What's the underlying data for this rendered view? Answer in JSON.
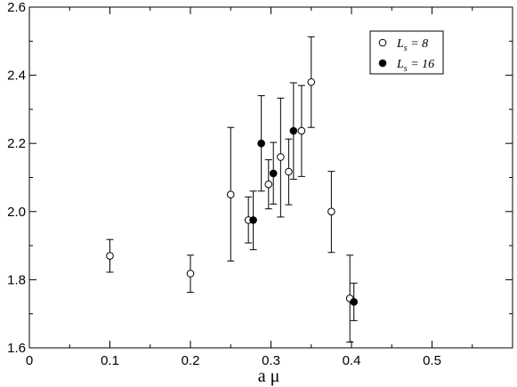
{
  "chart_data": {
    "type": "scatter",
    "title": "",
    "xlabel": "a μ",
    "ylabel": "",
    "xlim": [
      0,
      0.6
    ],
    "ylim": [
      1.6,
      2.6
    ],
    "x_ticks": [
      0,
      0.1,
      0.2,
      0.3,
      0.4,
      0.5
    ],
    "x_tick_labels": [
      "0",
      "0.1",
      "0.2",
      "0.3",
      "0.4",
      "0.5"
    ],
    "y_ticks": [
      1.6,
      1.8,
      2.0,
      2.2,
      2.4,
      2.6
    ],
    "y_tick_labels": [
      "1.6",
      "1.8",
      "2.0",
      "2.2",
      "2.4",
      "2.6"
    ],
    "grid": false,
    "legend_position": "top-right",
    "series": [
      {
        "name": "L_s = 8",
        "legend_main": "L",
        "legend_sub": "s",
        "legend_rest": " = 8",
        "marker": "open-circle",
        "color": "#000000",
        "points": [
          {
            "x": 0.1,
            "y": 1.87,
            "err_low": 1.822,
            "err_high": 1.918
          },
          {
            "x": 0.2,
            "y": 1.818,
            "err_low": 1.763,
            "err_high": 1.872
          },
          {
            "x": 0.25,
            "y": 2.05,
            "err_low": 1.855,
            "err_high": 2.247
          },
          {
            "x": 0.272,
            "y": 1.975,
            "err_low": 1.908,
            "err_high": 2.043
          },
          {
            "x": 0.297,
            "y": 2.08,
            "err_low": 2.008,
            "err_high": 2.152
          },
          {
            "x": 0.312,
            "y": 2.16,
            "err_low": 1.984,
            "err_high": 2.333
          },
          {
            "x": 0.322,
            "y": 2.117,
            "err_low": 2.02,
            "err_high": 2.213
          },
          {
            "x": 0.338,
            "y": 2.237,
            "err_low": 2.103,
            "err_high": 2.37
          },
          {
            "x": 0.35,
            "y": 2.38,
            "err_low": 2.247,
            "err_high": 2.513
          },
          {
            "x": 0.375,
            "y": 2.0,
            "err_low": 1.88,
            "err_high": 2.118
          },
          {
            "x": 0.398,
            "y": 1.745,
            "err_low": 1.617,
            "err_high": 1.872
          }
        ]
      },
      {
        "name": "L_s = 16",
        "legend_main": "L",
        "legend_sub": "s",
        "legend_rest": " = 16",
        "marker": "filled-circle",
        "color": "#000000",
        "points": [
          {
            "x": 0.278,
            "y": 1.975,
            "err_low": 1.888,
            "err_high": 2.06
          },
          {
            "x": 0.288,
            "y": 2.2,
            "err_low": 2.06,
            "err_high": 2.34
          },
          {
            "x": 0.303,
            "y": 2.112,
            "err_low": 2.022,
            "err_high": 2.203
          },
          {
            "x": 0.328,
            "y": 2.237,
            "err_low": 2.095,
            "err_high": 2.378
          },
          {
            "x": 0.403,
            "y": 1.735,
            "err_low": 1.68,
            "err_high": 1.79
          }
        ]
      }
    ]
  }
}
